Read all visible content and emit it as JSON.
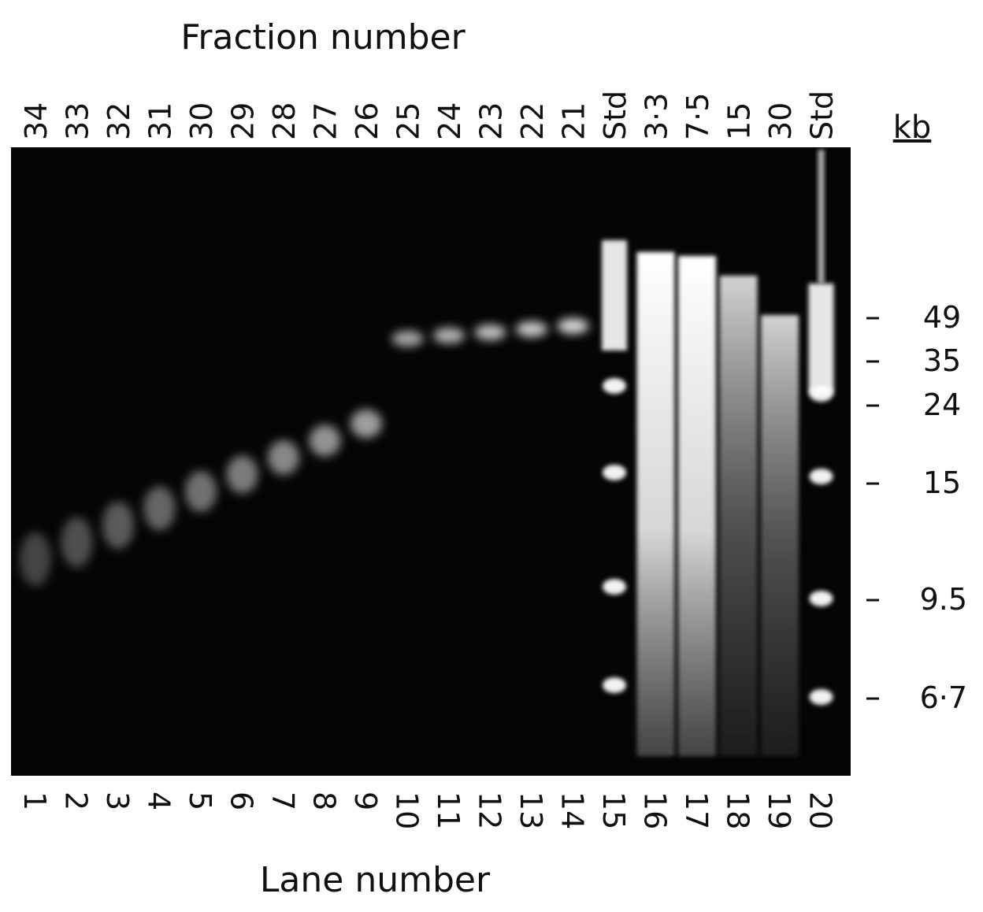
{
  "figure": {
    "top_title": "Fraction number",
    "top_labels": [
      "34",
      "33",
      "32",
      "31",
      "30",
      "29",
      "28",
      "27",
      "26",
      "25",
      "24",
      "23",
      "22",
      "21",
      "Std",
      "3·3",
      "7·5",
      "15",
      "30",
      "Std"
    ],
    "unit_label": "kb",
    "size_markers": [
      "49",
      "35",
      "24",
      "15",
      "9.5",
      "6·7"
    ],
    "lane_numbers": [
      "1",
      "2",
      "3",
      "4",
      "5",
      "6",
      "7",
      "8",
      "9",
      "10",
      "11",
      "12",
      "13",
      "14",
      "15",
      "16",
      "17",
      "18",
      "19",
      "20"
    ],
    "bottom_title": "Lane number"
  }
}
